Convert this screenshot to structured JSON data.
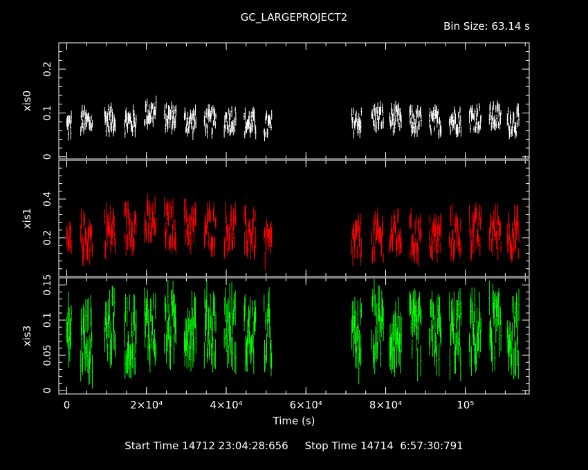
{
  "header": {
    "title": "GC_LARGEPROJECT2",
    "bin_size": "Bin Size: 63.14 s"
  },
  "footer": {
    "start_label": "Start Time",
    "start_value": "14712 23:04:28:656",
    "stop_label": "Stop Time",
    "stop_value": "14714  6:57:30:791"
  },
  "colors": {
    "xis0": "#ffffff",
    "xis1": "#ff0000",
    "xis3": "#00ff00",
    "axes": "#ffffff",
    "background": "#000000"
  },
  "chart_data": {
    "type": "scatter",
    "style": "light curve points with vertical error bars, three stacked panels sharing one x axis",
    "xlabel": "Time (s)",
    "xlim": [
      -2000,
      116000
    ],
    "x_ticks": [
      {
        "value": 0,
        "label": "0"
      },
      {
        "value": 20000,
        "label": "2×10⁴"
      },
      {
        "value": 40000,
        "label": "4×10⁴"
      },
      {
        "value": 60000,
        "label": "6×10⁴"
      },
      {
        "value": 80000,
        "label": "8×10⁴"
      },
      {
        "value": 100000,
        "label": "10⁵"
      }
    ],
    "segments_x": [
      [
        0,
        1200
      ],
      [
        3500,
        6500
      ],
      [
        9500,
        12200
      ],
      [
        14500,
        17500
      ],
      [
        19500,
        22500
      ],
      [
        24500,
        27500
      ],
      [
        29500,
        32500
      ],
      [
        34500,
        37500
      ],
      [
        39500,
        42500
      ],
      [
        44500,
        47500
      ],
      [
        49500,
        51500
      ],
      [
        71500,
        74000
      ],
      [
        76500,
        79500
      ],
      [
        81000,
        84000
      ],
      [
        86000,
        89000
      ],
      [
        91000,
        94000
      ],
      [
        96000,
        99000
      ],
      [
        101000,
        104000
      ],
      [
        106000,
        109000
      ],
      [
        110500,
        113500
      ]
    ],
    "panels": [
      {
        "name": "xis0",
        "ylabel": "xis0",
        "ylim": [
          -0.005,
          0.26
        ],
        "y_ticks": [
          {
            "value": 0,
            "label": "0"
          },
          {
            "value": 0.1,
            "label": "0.1"
          },
          {
            "value": 0.2,
            "label": "0.2"
          }
        ],
        "typical_range": [
          0.04,
          0.12
        ],
        "baseline": 0.07,
        "series": [
          {
            "values_per_segment_mean": [
              0.07,
              0.08,
              0.085,
              0.08,
              0.1,
              0.09,
              0.08,
              0.08,
              0.085,
              0.075,
              0.07,
              0.08,
              0.09,
              0.085,
              0.08,
              0.08,
              0.085,
              0.09,
              0.09,
              0.08
            ]
          }
        ]
      },
      {
        "name": "xis1",
        "ylabel": "xis1",
        "ylim": [
          0,
          0.6
        ],
        "y_ticks": [
          {
            "value": 0.2,
            "label": "0.2"
          },
          {
            "value": 0.4,
            "label": "0.4"
          }
        ],
        "typical_range": [
          0.1,
          0.4
        ],
        "baseline": 0.2,
        "series": [
          {
            "values_per_segment_mean": [
              0.16,
              0.2,
              0.24,
              0.26,
              0.27,
              0.26,
              0.26,
              0.25,
              0.24,
              0.22,
              0.16,
              0.18,
              0.2,
              0.22,
              0.2,
              0.2,
              0.22,
              0.23,
              0.24,
              0.22
            ]
          }
        ]
      },
      {
        "name": "xis3",
        "ylabel": "xis3",
        "ylim": [
          -0.005,
          0.16
        ],
        "y_ticks": [
          {
            "value": 0,
            "label": "0"
          },
          {
            "value": 0.05,
            "label": "0.05"
          },
          {
            "value": 0.1,
            "label": "0.1"
          },
          {
            "value": 0.15,
            "label": "0.15"
          }
        ],
        "typical_range": [
          0.02,
          0.15
        ],
        "baseline": 0.08,
        "series": [
          {
            "values_per_segment_mean": [
              0.08,
              0.07,
              0.09,
              0.08,
              0.09,
              0.09,
              0.09,
              0.09,
              0.09,
              0.08,
              0.08,
              0.07,
              0.09,
              0.08,
              0.08,
              0.08,
              0.08,
              0.08,
              0.09,
              0.08
            ]
          }
        ]
      }
    ],
    "grid": false,
    "legend": "none"
  }
}
